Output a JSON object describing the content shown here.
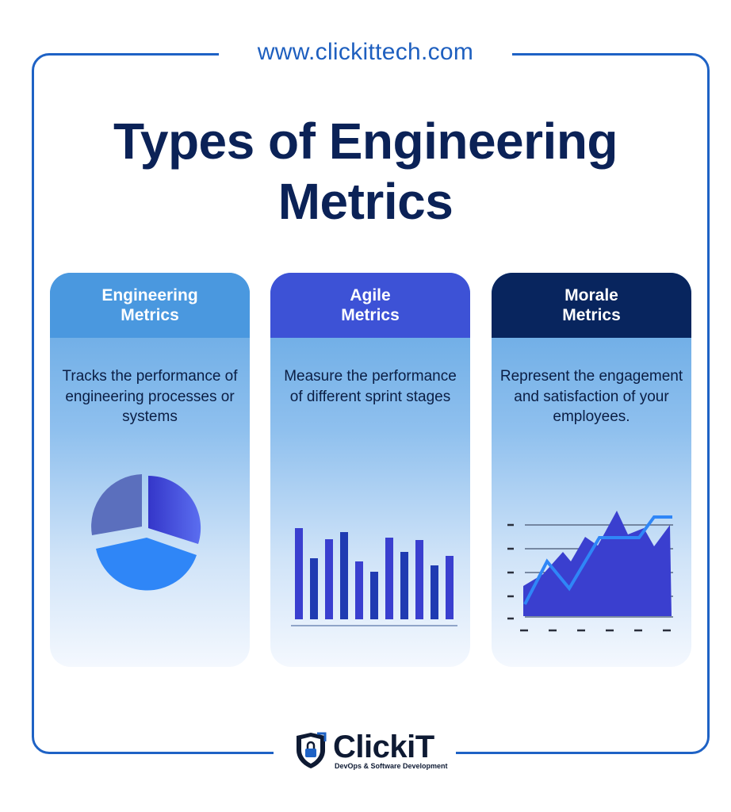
{
  "site_url": "www.clickittech.com",
  "title": {
    "line1": "Types of Engineering",
    "line2": "Metrics"
  },
  "cards": [
    {
      "head_line1": "Engineering",
      "head_line2": "Metrics",
      "body": "Tracks the performance of engineering processes or systems",
      "visual": "pie-chart-icon"
    },
    {
      "head_line1": "Agile",
      "head_line2": "Metrics",
      "body": "Measure the performance of different sprint stages",
      "visual": "bar-chart-icon"
    },
    {
      "head_line1": "Morale",
      "head_line2": "Metrics",
      "body": "Represent the engagement and satisfaction of your employees.",
      "visual": "area-line-chart-icon"
    }
  ],
  "logo": {
    "word": "ClickiT",
    "tagline": "DevOps & Software Development"
  },
  "colors": {
    "frame": "#1e62c5",
    "title": "#0b2257",
    "engineering_head": "#4a98df",
    "agile_head": "#3d52d6",
    "morale_head": "#08255e"
  }
}
